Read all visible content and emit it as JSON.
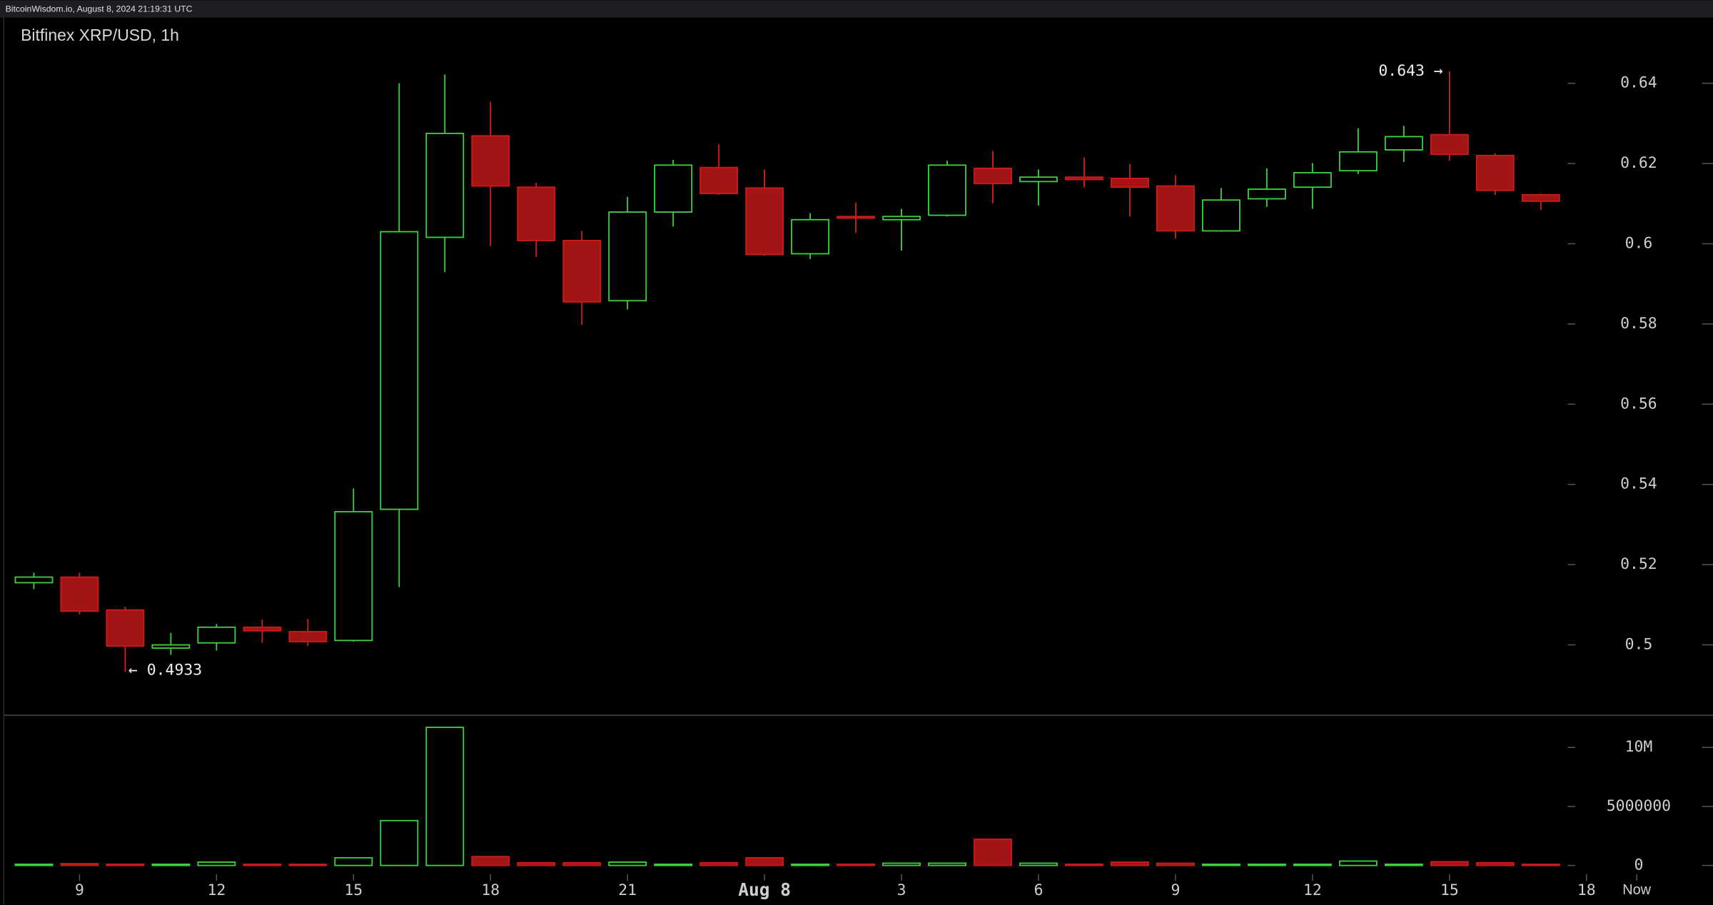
{
  "header": {
    "text": "BitcoinWisdom.io, August 8, 2024 21:19:31 UTC"
  },
  "chart_data": [
    {
      "type": "candlestick",
      "title": "Bitfinex XRP/USD, 1h",
      "x": [
        0,
        1,
        2,
        3,
        4,
        5,
        6,
        7,
        8,
        9,
        10,
        11,
        12,
        13,
        14,
        15,
        16,
        17,
        18,
        19,
        20,
        21,
        22,
        23,
        24,
        25,
        26,
        27,
        28,
        29,
        30,
        31,
        32,
        33
      ],
      "open": [
        0.5155,
        0.5169,
        0.5087,
        0.4992,
        0.5005,
        0.5044,
        0.5033,
        0.5011,
        0.5338,
        0.6016,
        0.6269,
        0.6141,
        0.6008,
        0.5858,
        0.6079,
        0.619,
        0.6139,
        0.5975,
        0.6068,
        0.606,
        0.6071,
        0.6188,
        0.6155,
        0.6166,
        0.6163,
        0.6144,
        0.6032,
        0.6112,
        0.6141,
        0.6182,
        0.6234,
        0.6272,
        0.622,
        0.6122
      ],
      "high": [
        0.518,
        0.518,
        0.5095,
        0.503,
        0.5052,
        0.5063,
        0.5065,
        0.539,
        0.64,
        0.6422,
        0.6354,
        0.6152,
        0.6032,
        0.6117,
        0.6209,
        0.6248,
        0.6185,
        0.6076,
        0.6103,
        0.6087,
        0.6207,
        0.6231,
        0.6185,
        0.6215,
        0.6199,
        0.6171,
        0.6139,
        0.6188,
        0.6201,
        0.6288,
        0.6294,
        0.643,
        0.6226,
        0.6125
      ],
      "low": [
        0.5139,
        0.5076,
        0.4933,
        0.4975,
        0.4986,
        0.5005,
        0.4997,
        0.5008,
        0.5144,
        0.5929,
        0.5994,
        0.5967,
        0.5798,
        0.5836,
        0.6043,
        0.6122,
        0.597,
        0.5962,
        0.6027,
        0.5983,
        0.6068,
        0.6101,
        0.6095,
        0.6141,
        0.6068,
        0.6013,
        0.603,
        0.6092,
        0.6087,
        0.6174,
        0.6204,
        0.6207,
        0.6122,
        0.6084
      ],
      "close": [
        0.5169,
        0.5084,
        0.4997,
        0.5,
        0.5044,
        0.5035,
        0.5008,
        0.5332,
        0.603,
        0.6275,
        0.6144,
        0.6008,
        0.5855,
        0.6079,
        0.6196,
        0.6125,
        0.5973,
        0.606,
        0.6065,
        0.6068,
        0.6196,
        0.615,
        0.6166,
        0.616,
        0.6141,
        0.6032,
        0.6109,
        0.6136,
        0.6177,
        0.6229,
        0.6267,
        0.6223,
        0.6133,
        0.6106
      ],
      "up_color": "#3fcf3f",
      "down_color": "#a31515",
      "xlim": [
        -0.67,
        36.77
      ],
      "ylim": [
        0.4826,
        0.6558
      ],
      "yticks": [
        0.5,
        0.52,
        0.54,
        0.56,
        0.58,
        0.6,
        0.62,
        0.64
      ],
      "annotations": [
        {
          "text": "0.643 →"
        },
        {
          "text": "← 0.4933"
        }
      ]
    },
    {
      "type": "bar",
      "x": [
        0,
        1,
        2,
        3,
        4,
        5,
        6,
        7,
        8,
        9,
        10,
        11,
        12,
        13,
        14,
        15,
        16,
        17,
        18,
        19,
        20,
        21,
        22,
        23,
        24,
        25,
        26,
        27,
        28,
        29,
        30,
        31,
        32,
        33
      ],
      "values": [
        100000,
        150000,
        100000,
        100000,
        280000,
        100000,
        50000,
        650000,
        3800000,
        11700000,
        750000,
        230000,
        230000,
        280000,
        100000,
        230000,
        650000,
        100000,
        100000,
        190000,
        190000,
        2220000,
        190000,
        100000,
        280000,
        190000,
        100000,
        100000,
        100000,
        370000,
        100000,
        320000,
        230000,
        50000
      ],
      "xlim": [
        -0.67,
        36.77
      ],
      "ylim": [
        -740000,
        12590000
      ],
      "yticks": [
        0,
        5000000,
        {
          "value": 10000000,
          "label": "10M"
        }
      ],
      "xticks": [
        {
          "value": 1,
          "label": "9"
        },
        {
          "value": 4,
          "label": "12"
        },
        {
          "value": 7,
          "label": "15"
        },
        {
          "value": 10,
          "label": "18"
        },
        {
          "value": 13,
          "label": "21"
        },
        {
          "value": 16,
          "label": "Aug 8"
        },
        {
          "value": 19,
          "label": "3"
        },
        {
          "value": 22,
          "label": "6"
        },
        {
          "value": 25,
          "label": "9"
        },
        {
          "value": 28,
          "label": "12"
        },
        {
          "value": 31,
          "label": "15"
        },
        {
          "value": 34,
          "label": "18"
        },
        {
          "value": 35.1,
          "label": "Now"
        }
      ]
    }
  ]
}
